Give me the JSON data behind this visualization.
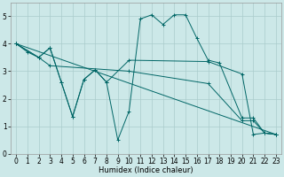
{
  "xlabel": "Humidex (Indice chaleur)",
  "bg_color": "#cce8e8",
  "grid_color": "#aacccc",
  "line_color": "#006666",
  "xlim": [
    -0.5,
    23.5
  ],
  "ylim": [
    0,
    5.5
  ],
  "xticks": [
    0,
    1,
    2,
    3,
    4,
    5,
    6,
    7,
    8,
    9,
    10,
    11,
    12,
    13,
    14,
    15,
    16,
    17,
    18,
    19,
    20,
    21,
    22,
    23
  ],
  "yticks": [
    0,
    1,
    2,
    3,
    4,
    5
  ],
  "line1": {
    "x": [
      0,
      23
    ],
    "y": [
      4.0,
      0.7
    ]
  },
  "line2": {
    "x": [
      0,
      2,
      3,
      4,
      5,
      6,
      7,
      8,
      10,
      17,
      20,
      21,
      22,
      23
    ],
    "y": [
      4.0,
      3.5,
      3.85,
      2.6,
      1.35,
      2.7,
      3.05,
      2.6,
      3.4,
      3.35,
      2.9,
      0.7,
      0.75,
      0.7
    ]
  },
  "line3": {
    "x": [
      0,
      2,
      3,
      4,
      5,
      6,
      7,
      8,
      9,
      10,
      11,
      12,
      13,
      14,
      15,
      16,
      17,
      18,
      20,
      21,
      22,
      23
    ],
    "y": [
      4.0,
      3.5,
      3.85,
      2.6,
      1.35,
      2.7,
      3.05,
      2.6,
      0.5,
      1.55,
      4.9,
      5.05,
      4.7,
      5.05,
      5.05,
      4.2,
      3.4,
      3.3,
      1.3,
      1.3,
      0.75,
      0.7
    ]
  },
  "line4": {
    "x": [
      0,
      1,
      2,
      3,
      10,
      17,
      20,
      21,
      22,
      23
    ],
    "y": [
      4.0,
      3.7,
      3.5,
      3.2,
      3.0,
      2.55,
      1.2,
      1.2,
      0.75,
      0.7
    ]
  }
}
